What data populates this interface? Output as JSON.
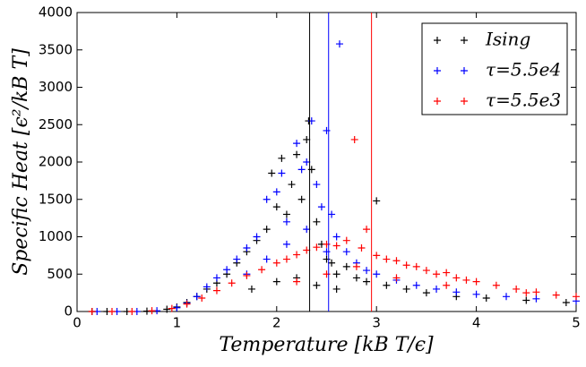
{
  "chart_data": {
    "type": "scatter",
    "x_label": "Temperature [kB T/ϵ]",
    "y_label": "Specific Heat [ϵ²/kB T]",
    "xlim": [
      0,
      5
    ],
    "ylim": [
      0,
      4000
    ],
    "xticks": [
      0,
      1,
      2,
      3,
      4,
      5
    ],
    "yticks": [
      0,
      500,
      1000,
      1500,
      2000,
      2500,
      3000,
      3500,
      4000
    ],
    "grid": false,
    "legend": "upper right",
    "vlines": [
      {
        "x": 2.33,
        "color": "#000000"
      },
      {
        "x": 2.52,
        "color": "#0000ff"
      },
      {
        "x": 2.95,
        "color": "#ff0000"
      }
    ],
    "series": [
      {
        "name": "Ising",
        "color": "#000000",
        "x": [
          0.15,
          0.3,
          0.5,
          0.7,
          0.9,
          1.0,
          1.1,
          1.2,
          1.3,
          1.4,
          1.5,
          1.6,
          1.7,
          1.8,
          1.9,
          1.95,
          2.0,
          2.05,
          2.1,
          2.15,
          2.2,
          2.25,
          2.3,
          2.32,
          2.35,
          2.4,
          2.45,
          2.5,
          2.55,
          2.6,
          2.7,
          2.8,
          2.9,
          3.0,
          3.1,
          3.3,
          3.5,
          3.8,
          4.1,
          4.5,
          4.9,
          1.75,
          2.0,
          2.2,
          2.4,
          2.6
        ],
        "y": [
          0,
          0,
          0,
          5,
          30,
          60,
          120,
          200,
          300,
          380,
          500,
          650,
          800,
          950,
          1100,
          1850,
          1400,
          2050,
          1300,
          1700,
          2100,
          1500,
          2300,
          2550,
          1900,
          1200,
          900,
          700,
          650,
          500,
          600,
          450,
          400,
          1480,
          350,
          300,
          250,
          200,
          180,
          150,
          120,
          300,
          400,
          450,
          350,
          300
        ]
      },
      {
        "name": "τ=5.5e4",
        "color": "#0000ff",
        "x": [
          0.2,
          0.4,
          0.6,
          0.8,
          1.0,
          1.1,
          1.2,
          1.3,
          1.4,
          1.5,
          1.6,
          1.7,
          1.8,
          1.9,
          2.0,
          2.05,
          2.1,
          2.2,
          2.25,
          2.3,
          2.35,
          2.4,
          2.45,
          2.5,
          2.55,
          2.6,
          2.63,
          2.7,
          2.8,
          2.9,
          3.0,
          3.2,
          3.4,
          3.6,
          3.8,
          4.0,
          4.3,
          4.6,
          5.0,
          1.7,
          1.9,
          2.1,
          2.3,
          2.5
        ],
        "y": [
          0,
          0,
          0,
          10,
          50,
          110,
          200,
          330,
          450,
          560,
          700,
          850,
          1000,
          1500,
          1600,
          1850,
          1200,
          2250,
          1900,
          2000,
          2550,
          1700,
          1400,
          2420,
          1300,
          1000,
          3580,
          800,
          650,
          550,
          500,
          420,
          350,
          300,
          260,
          230,
          200,
          170,
          140,
          500,
          700,
          900,
          1100,
          800
        ]
      },
      {
        "name": "τ=5.5e3",
        "color": "#ff0000",
        "x": [
          0.15,
          0.35,
          0.55,
          0.75,
          0.95,
          1.1,
          1.25,
          1.4,
          1.55,
          1.7,
          1.85,
          2.0,
          2.1,
          2.2,
          2.3,
          2.4,
          2.5,
          2.6,
          2.7,
          2.78,
          2.85,
          2.9,
          3.0,
          3.1,
          3.2,
          3.3,
          3.4,
          3.5,
          3.6,
          3.7,
          3.8,
          3.9,
          4.0,
          4.2,
          4.4,
          4.6,
          4.8,
          5.0,
          2.2,
          2.5,
          2.8,
          3.2,
          3.7,
          4.5
        ],
        "y": [
          0,
          0,
          0,
          10,
          40,
          100,
          180,
          280,
          380,
          480,
          560,
          650,
          700,
          760,
          820,
          860,
          900,
          880,
          950,
          2300,
          850,
          1100,
          750,
          700,
          680,
          620,
          600,
          550,
          500,
          520,
          450,
          420,
          400,
          350,
          300,
          260,
          220,
          200,
          400,
          500,
          600,
          450,
          350,
          250
        ]
      }
    ]
  }
}
